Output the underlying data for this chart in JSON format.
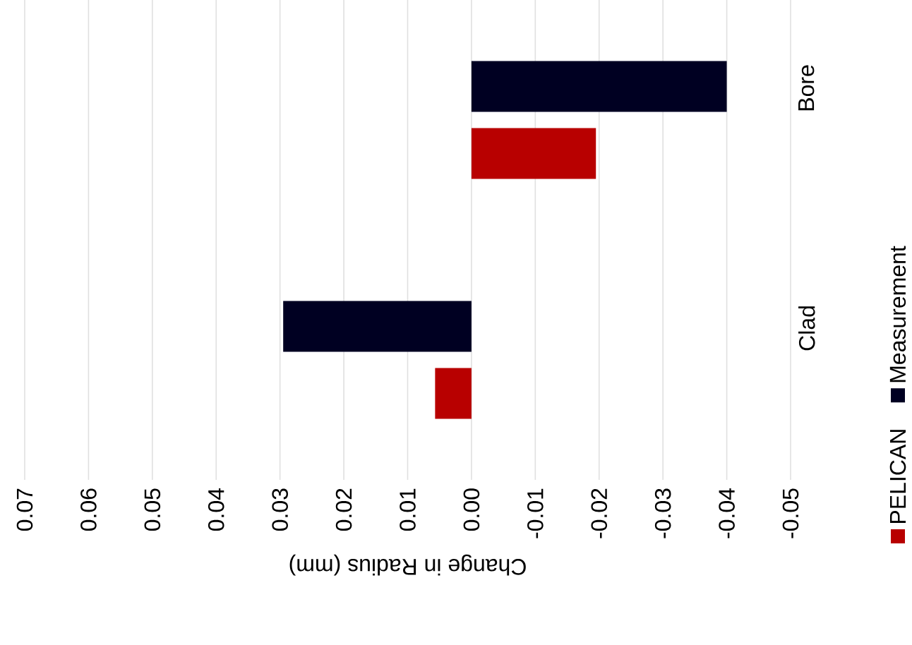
{
  "chart_data": {
    "type": "bar",
    "orientation": "horizontal",
    "categories": [
      "Bore",
      "Clad"
    ],
    "series": [
      {
        "name": "PELICAN",
        "color": "#b80000",
        "values": [
          -0.0195,
          0.0057
        ]
      },
      {
        "name": "Measurement",
        "color": "#000022",
        "values": [
          -0.04,
          0.0295
        ]
      }
    ],
    "xlabel": "Change in Radius (mm)",
    "xlim": [
      0.07,
      -0.05
    ],
    "xticks": [
      0.07,
      0.06,
      0.05,
      0.04,
      0.03,
      0.02,
      0.01,
      {
        "value": 0,
        "label": "0.00"
      },
      -0.01,
      -0.02,
      -0.03,
      -0.04,
      -0.05
    ],
    "grid": "x",
    "legend": "right"
  }
}
